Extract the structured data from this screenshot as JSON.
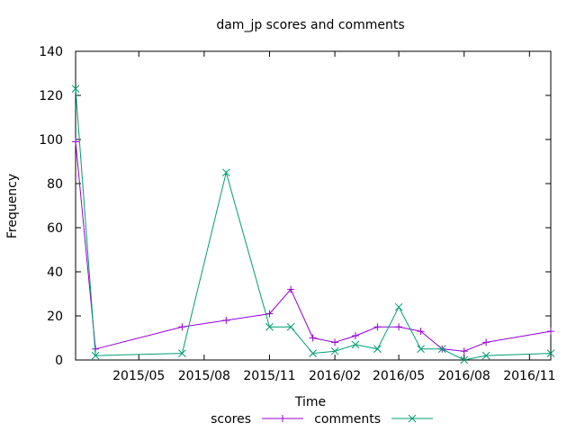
{
  "chart_data": {
    "type": "line",
    "title": "dam_jp scores and comments",
    "xlabel": "Time",
    "ylabel": "Frequency",
    "ylim": [
      0,
      140
    ],
    "xlim": [
      "2015-02-01",
      "2016-12-01"
    ],
    "y_ticks": [
      0,
      20,
      40,
      60,
      80,
      100,
      120,
      140
    ],
    "x_ticks": [
      {
        "date": "2015-05-01",
        "label": "2015/05"
      },
      {
        "date": "2015-08-01",
        "label": "2015/08"
      },
      {
        "date": "2015-11-01",
        "label": "2015/11"
      },
      {
        "date": "2016-02-01",
        "label": "2016/02"
      },
      {
        "date": "2016-05-01",
        "label": "2016/05"
      },
      {
        "date": "2016-08-01",
        "label": "2016/08"
      },
      {
        "date": "2016-11-01",
        "label": "2016/11"
      }
    ],
    "grid": false,
    "legend_position": "bottom",
    "series": [
      {
        "name": "scores",
        "color": "#9400d3",
        "marker": "plus",
        "points": [
          [
            "2015-02-01",
            99
          ],
          [
            "2015-03-01",
            5
          ],
          [
            "2015-07-01",
            15
          ],
          [
            "2015-09-01",
            18
          ],
          [
            "2015-11-01",
            21
          ],
          [
            "2015-12-01",
            32
          ],
          [
            "2016-01-01",
            10
          ],
          [
            "2016-02-01",
            8
          ],
          [
            "2016-03-01",
            11
          ],
          [
            "2016-04-01",
            15
          ],
          [
            "2016-05-01",
            15
          ],
          [
            "2016-06-01",
            13
          ],
          [
            "2016-07-01",
            5
          ],
          [
            "2016-08-01",
            4
          ],
          [
            "2016-09-01",
            8
          ],
          [
            "2016-12-01",
            13
          ]
        ]
      },
      {
        "name": "comments",
        "color": "#009e73",
        "marker": "cross",
        "points": [
          [
            "2015-02-01",
            123
          ],
          [
            "2015-03-01",
            2
          ],
          [
            "2015-07-01",
            3
          ],
          [
            "2015-09-01",
            85
          ],
          [
            "2015-11-01",
            15
          ],
          [
            "2015-12-01",
            15
          ],
          [
            "2016-01-01",
            3
          ],
          [
            "2016-02-01",
            4
          ],
          [
            "2016-03-01",
            7
          ],
          [
            "2016-04-01",
            5
          ],
          [
            "2016-05-01",
            24
          ],
          [
            "2016-06-01",
            5
          ],
          [
            "2016-07-01",
            5
          ],
          [
            "2016-08-01",
            0
          ],
          [
            "2016-09-01",
            2
          ],
          [
            "2016-12-01",
            3
          ]
        ]
      }
    ]
  }
}
